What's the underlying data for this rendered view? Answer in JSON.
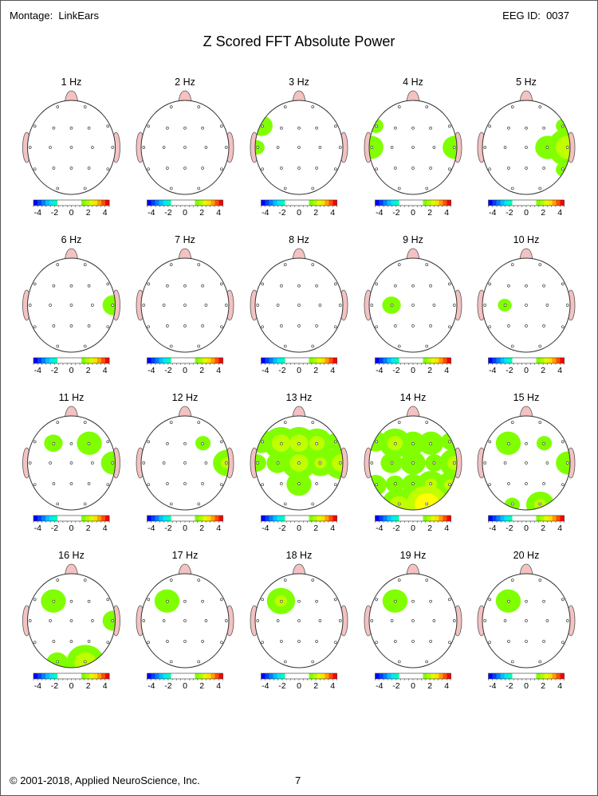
{
  "header": {
    "montage": "Montage:  LinkEars",
    "eeg_id": "EEG ID:  0037",
    "title": "Z Scored FFT Absolute Power"
  },
  "footer": {
    "copyright": "© 2001-2018, Applied NeuroScience, Inc.",
    "page_number": "7"
  },
  "colorbar": {
    "tick_labels": [
      "-4",
      "-2",
      "0",
      "2",
      "4"
    ],
    "tick_values": [
      -4,
      -2,
      0,
      2,
      4
    ],
    "range": [
      -4.5,
      4.5
    ],
    "segments": [
      "#0000ff",
      "#0040ff",
      "#0080ff",
      "#00c0ff",
      "#00e8ff",
      "#00ffb0",
      "#ffffff",
      "#ffffff",
      "#ffffff",
      "#ffffff",
      "#ffffff",
      "#ffffff",
      "#80ff00",
      "#b0ff00",
      "#e0ff00",
      "#ffe000",
      "#ffa000",
      "#ff5000",
      "#ff0000"
    ]
  },
  "z_levels": [
    {
      "min": 1.5,
      "color": "#80ff00"
    },
    {
      "min": 2.0,
      "color": "#c0ff00"
    },
    {
      "min": 2.5,
      "color": "#ffff00"
    },
    {
      "min": 3.0,
      "color": "#ffc000"
    }
  ],
  "electrodes": [
    "Fp1",
    "Fp2",
    "F7",
    "F3",
    "Fz",
    "F4",
    "F8",
    "T3",
    "C3",
    "Cz",
    "C4",
    "T4",
    "T5",
    "P3",
    "Pz",
    "P4",
    "T6",
    "O1",
    "O2"
  ],
  "maps": [
    {
      "label": "1 Hz",
      "significant": []
    },
    {
      "label": "2 Hz",
      "significant": []
    },
    {
      "label": "3 Hz",
      "significant": [
        {
          "site": "F7",
          "z": 1.8
        },
        {
          "site": "T3",
          "z": 1.6
        }
      ]
    },
    {
      "label": "4 Hz",
      "significant": [
        {
          "site": "T3",
          "z": 1.9
        },
        {
          "site": "F7",
          "z": 1.6
        },
        {
          "site": "T4",
          "z": 1.9
        }
      ]
    },
    {
      "label": "5 Hz",
      "significant": [
        {
          "site": "T4",
          "z": 2.4
        },
        {
          "site": "C4",
          "z": 1.9
        },
        {
          "site": "F8",
          "z": 1.6
        },
        {
          "site": "T6",
          "z": 1.6
        }
      ]
    },
    {
      "label": "6 Hz",
      "significant": [
        {
          "site": "T4",
          "z": 1.8
        }
      ]
    },
    {
      "label": "7 Hz",
      "significant": []
    },
    {
      "label": "8 Hz",
      "significant": []
    },
    {
      "label": "9 Hz",
      "significant": [
        {
          "site": "C3",
          "z": 1.7
        }
      ]
    },
    {
      "label": "10 Hz",
      "significant": [
        {
          "site": "C3",
          "z": 1.55
        }
      ]
    },
    {
      "label": "11 Hz",
      "significant": [
        {
          "site": "F3",
          "z": 1.7
        },
        {
          "site": "F4",
          "z": 1.9
        },
        {
          "site": "T4",
          "z": 1.9
        }
      ]
    },
    {
      "label": "12 Hz",
      "significant": [
        {
          "site": "F4",
          "z": 1.6
        },
        {
          "site": "T4",
          "z": 2.0
        }
      ]
    },
    {
      "label": "13 Hz",
      "significant": [
        {
          "site": "F7",
          "z": 1.9
        },
        {
          "site": "F3",
          "z": 2.2
        },
        {
          "site": "Fz",
          "z": 2.2
        },
        {
          "site": "F4",
          "z": 2.1
        },
        {
          "site": "F8",
          "z": 1.7
        },
        {
          "site": "T3",
          "z": 1.7
        },
        {
          "site": "C3",
          "z": 1.8
        },
        {
          "site": "Cz",
          "z": 2.2
        },
        {
          "site": "C4",
          "z": 2.0
        },
        {
          "site": "T4",
          "z": 2.2
        },
        {
          "site": "Pz",
          "z": 1.9
        }
      ]
    },
    {
      "label": "14 Hz",
      "significant": [
        {
          "site": "F7",
          "z": 1.8
        },
        {
          "site": "F3",
          "z": 2.1
        },
        {
          "site": "Fz",
          "z": 1.9
        },
        {
          "site": "F4",
          "z": 1.9
        },
        {
          "site": "F8",
          "z": 1.7
        },
        {
          "site": "C3",
          "z": 1.8
        },
        {
          "site": "Cz",
          "z": 1.9
        },
        {
          "site": "C4",
          "z": 1.7
        },
        {
          "site": "T4",
          "z": 2.1
        },
        {
          "site": "T5",
          "z": 1.8
        },
        {
          "site": "P3",
          "z": 1.7
        },
        {
          "site": "Pz",
          "z": 1.8
        },
        {
          "site": "P4",
          "z": 2.0
        },
        {
          "site": "T6",
          "z": 2.0
        },
        {
          "site": "O1",
          "z": 2.2
        },
        {
          "site": "O2",
          "z": 2.9
        }
      ]
    },
    {
      "label": "15 Hz",
      "significant": [
        {
          "site": "F3",
          "z": 1.9
        },
        {
          "site": "F4",
          "z": 1.6
        },
        {
          "site": "T4",
          "z": 1.9
        },
        {
          "site": "O2",
          "z": 2.0
        },
        {
          "site": "O1",
          "z": 1.6
        }
      ]
    },
    {
      "label": "16 Hz",
      "significant": [
        {
          "site": "F3",
          "z": 1.9
        },
        {
          "site": "T4",
          "z": 1.8
        },
        {
          "site": "O2",
          "z": 2.3
        },
        {
          "site": "O1",
          "z": 1.8
        }
      ]
    },
    {
      "label": "17 Hz",
      "significant": [
        {
          "site": "F3",
          "z": 1.9
        }
      ]
    },
    {
      "label": "18 Hz",
      "significant": [
        {
          "site": "F3",
          "z": 2.0
        }
      ]
    },
    {
      "label": "19 Hz",
      "significant": [
        {
          "site": "F3",
          "z": 1.9
        }
      ]
    },
    {
      "label": "20 Hz",
      "significant": [
        {
          "site": "F3",
          "z": 1.9
        }
      ]
    }
  ]
}
